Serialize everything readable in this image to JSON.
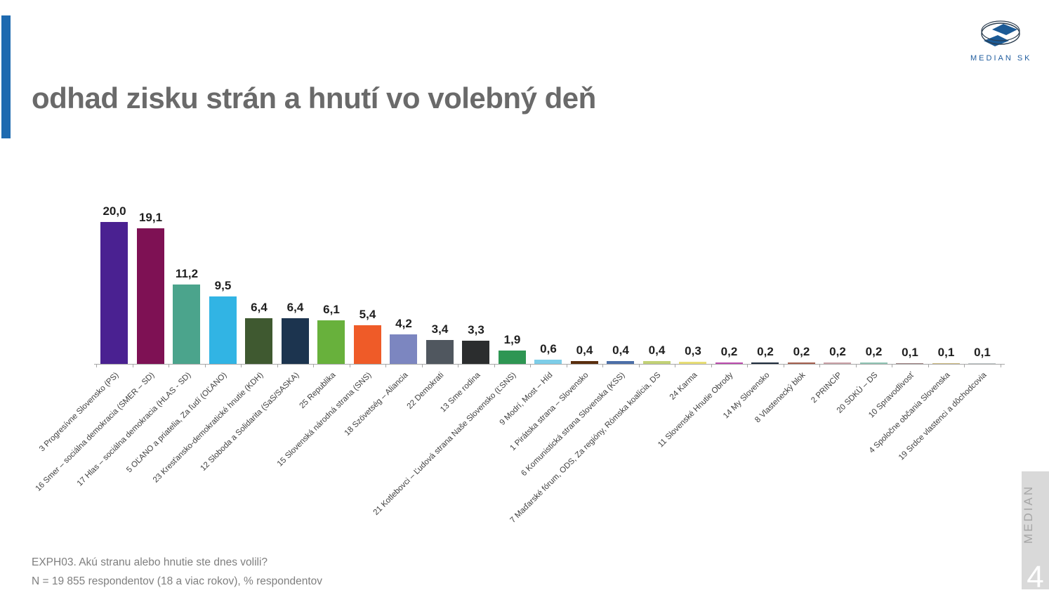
{
  "header": {
    "title": "odhad zisku strán a hnutí vo volebný deň",
    "accent_color": "#1E6AB0",
    "logo": {
      "brand": "MEDIAN SK",
      "brand_color": "#1F5C9E"
    }
  },
  "chart_data": {
    "type": "bar",
    "title": "odhad zisku strán a hnutí vo volebný deň",
    "xlabel": "",
    "ylabel": "% respondentov",
    "ylim": [
      0,
      21
    ],
    "grid": false,
    "legend_position": "none",
    "decimal_separator": ",",
    "categories": [
      "3 Progresívne Slovensko (PS)",
      "16 Smer – sociálna demokracia (SMER – SD)",
      "17 Hlas – sociálna demokracia (HLAS - SD)",
      "5 OĽANO a priatelia, Za ľudí (OĽANO)",
      "23 Kresťansko-demokratické hnutie (KDH)",
      "12 Sloboda a Solidarita (SaS/SASKA)",
      "25 Republika",
      "15 Slovenská národná strana (SNS)",
      "18 Szövetség – Aliancia",
      "22 Demokrati",
      "13 Sme rodina",
      "21 Kotlebovci – Ľudová strana Naše Slovensko (ĽSNS)",
      "9 Modrí, Most – Híd",
      "1 Pirátska strana – Slovensko",
      "6 Komunistická strana Slovenska (KSS)",
      "7 Maďarské fórum, ODS, Za regióny, Rómska koalícia, DS",
      "24 Karma",
      "11 Slovenské Hnutie Obrody",
      "14 My Slovensko",
      "8 Vlastenecký blok",
      "2 PRINCÍP",
      "20 SDKÚ – DS",
      "10 Spravodlivosť",
      "4 Spoločne občania Slovenska",
      "19 Srdce vlastenci a dôchodcovia"
    ],
    "values": [
      20.0,
      19.1,
      11.2,
      9.5,
      6.4,
      6.4,
      6.1,
      5.4,
      4.2,
      3.4,
      3.3,
      1.9,
      0.6,
      0.4,
      0.4,
      0.4,
      0.3,
      0.2,
      0.2,
      0.2,
      0.2,
      0.2,
      0.1,
      0.1,
      0.1
    ],
    "colors": [
      "#4A2191",
      "#7E1154",
      "#4BA48C",
      "#31B4E4",
      "#3F5930",
      "#1C344F",
      "#68B13C",
      "#EF5B28",
      "#7C86C0",
      "#50575F",
      "#2B2D2E",
      "#2E9653",
      "#7DCDE8",
      "#5A2E0E",
      "#4C6FA8",
      "#C2D276",
      "#E8DE76",
      "#BC4CAE",
      "#1F2D3D",
      "#A5604F",
      "#C9A0A6",
      "#8FC4B4",
      "#9C8080",
      "#CDB97E",
      "#BFC6C8"
    ]
  },
  "footer": {
    "question": "EXPH03. Akú stranu alebo hnutie ste dnes volili?",
    "sample": "N = 19 855 respondentov (18 a viac rokov), % respondentov"
  },
  "side": {
    "vertical_brand": "MEDIAN",
    "page_number": "4"
  }
}
